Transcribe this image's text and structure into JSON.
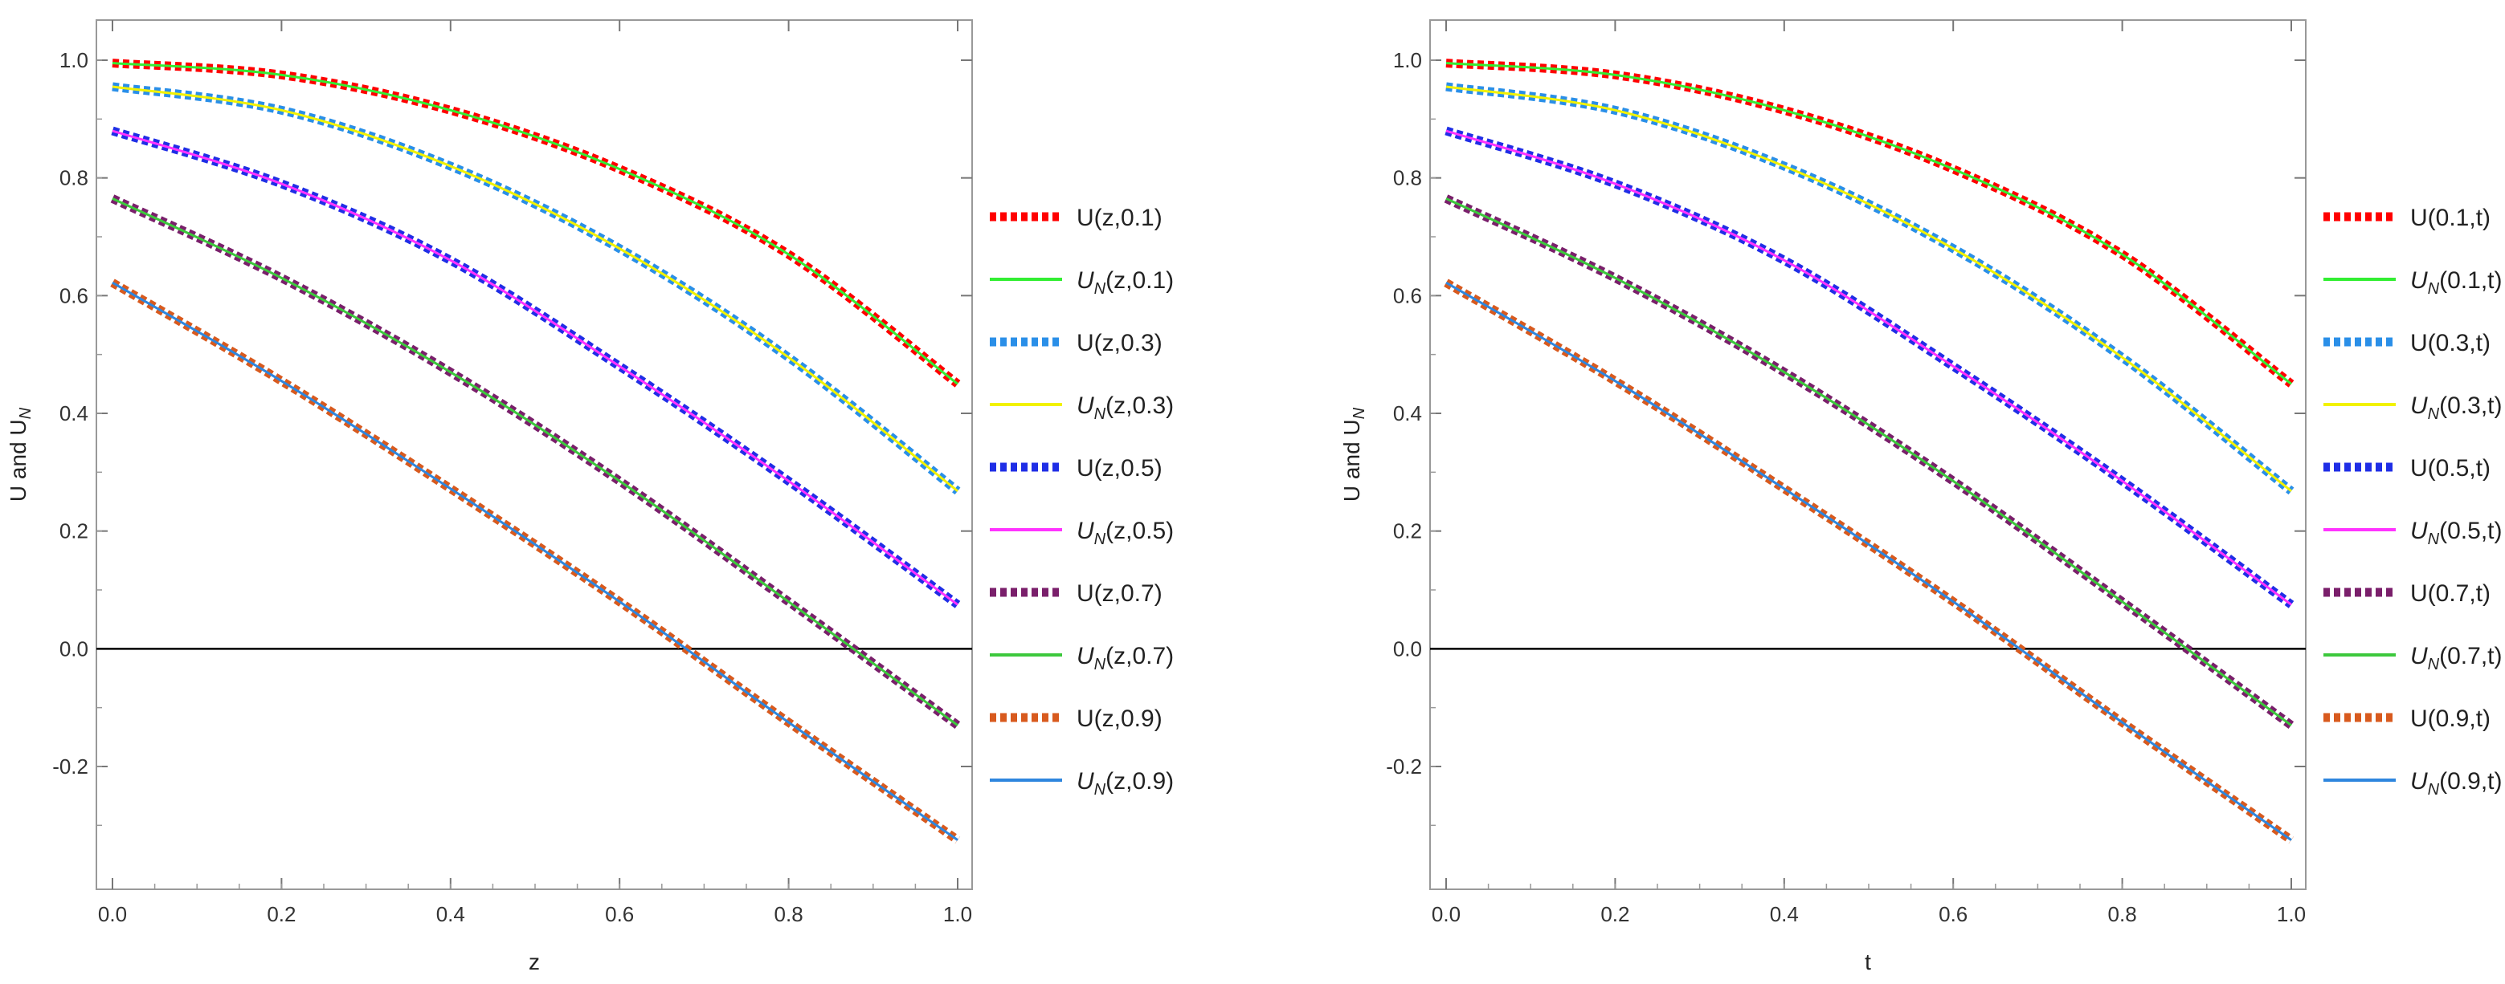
{
  "chart_data": [
    {
      "type": "line",
      "xlabel": "z",
      "ylabel": "U and U_N",
      "xlim": [
        0.0,
        1.0
      ],
      "ylim": [
        -0.4,
        1.05
      ],
      "xticks": [
        "0.0",
        "0.2",
        "0.4",
        "0.6",
        "0.8",
        "1.0"
      ],
      "yticks": [
        "-0.2",
        "0.0",
        "0.2",
        "0.4",
        "0.6",
        "0.8",
        "1.0"
      ],
      "x": [
        0.0,
        0.2,
        0.4,
        0.6,
        0.8,
        1.0
      ],
      "series": [
        {
          "name": "U(z,0.1)",
          "legend_main": "U",
          "legend_args": "(z,0.1)",
          "legend_sub": "",
          "color": "#ff0000",
          "style": "dashed-thick",
          "values": [
            0.995,
            0.975,
            0.915,
            0.815,
            0.67,
            0.45
          ]
        },
        {
          "name": "U_N(z,0.1)",
          "legend_main": "U",
          "legend_args": "(z,0.1)",
          "legend_sub": "N",
          "color": "#33ee33",
          "style": "solid",
          "values": [
            0.995,
            0.975,
            0.915,
            0.815,
            0.67,
            0.45
          ]
        },
        {
          "name": "U(z,0.3)",
          "legend_main": "U",
          "legend_args": "(z,0.3)",
          "legend_sub": "",
          "color": "#2a8fe8",
          "style": "dashed-thick",
          "values": [
            0.955,
            0.915,
            0.82,
            0.68,
            0.495,
            0.268
          ]
        },
        {
          "name": "U_N(z,0.3)",
          "legend_main": "U",
          "legend_args": "(z,0.3)",
          "legend_sub": "N",
          "color": "#f2f200",
          "style": "solid",
          "values": [
            0.955,
            0.915,
            0.82,
            0.68,
            0.495,
            0.268
          ]
        },
        {
          "name": "U(z,0.5)",
          "legend_main": "U",
          "legend_args": "(z,0.5)",
          "legend_sub": "",
          "color": "#1f2ee6",
          "style": "dashed-thick",
          "values": [
            0.88,
            0.79,
            0.66,
            0.48,
            0.285,
            0.075
          ]
        },
        {
          "name": "U_N(z,0.5)",
          "legend_main": "U",
          "legend_args": "(z,0.5)",
          "legend_sub": "N",
          "color": "#ff33ff",
          "style": "solid",
          "values": [
            0.88,
            0.79,
            0.66,
            0.48,
            0.285,
            0.075
          ]
        },
        {
          "name": "U(z,0.7)",
          "legend_main": "U",
          "legend_args": "(z,0.7)",
          "legend_sub": "",
          "color": "#7a1f6b",
          "style": "dashed-thick",
          "values": [
            0.765,
            0.63,
            0.47,
            0.285,
            0.08,
            -0.13
          ]
        },
        {
          "name": "U_N(z,0.7)",
          "legend_main": "U",
          "legend_args": "(z,0.7)",
          "legend_sub": "N",
          "color": "#3cc83c",
          "style": "solid",
          "values": [
            0.765,
            0.63,
            0.47,
            0.285,
            0.08,
            -0.13
          ]
        },
        {
          "name": "U(z,0.9)",
          "legend_main": "U",
          "legend_args": "(z,0.9)",
          "legend_sub": "",
          "color": "#d85a1e",
          "style": "dashed-thick",
          "values": [
            0.622,
            0.455,
            0.272,
            0.08,
            -0.125,
            -0.325
          ]
        },
        {
          "name": "U_N(z,0.9)",
          "legend_main": "U",
          "legend_args": "(z,0.9)",
          "legend_sub": "N",
          "color": "#2e86de",
          "style": "solid",
          "values": [
            0.622,
            0.455,
            0.272,
            0.08,
            -0.125,
            -0.325
          ]
        }
      ]
    },
    {
      "type": "line",
      "xlabel": "t",
      "ylabel": "U and U_N",
      "xlim": [
        0.0,
        1.0
      ],
      "ylim": [
        -0.4,
        1.05
      ],
      "xticks": [
        "0.0",
        "0.2",
        "0.4",
        "0.6",
        "0.8",
        "1.0"
      ],
      "yticks": [
        "-0.2",
        "0.0",
        "0.2",
        "0.4",
        "0.6",
        "0.8",
        "1.0"
      ],
      "x": [
        0.0,
        0.2,
        0.4,
        0.6,
        0.8,
        1.0
      ],
      "series": [
        {
          "name": "U(0.1,t)",
          "legend_main": "U",
          "legend_args": "(0.1,t)",
          "legend_sub": "",
          "color": "#ff0000",
          "style": "dashed-thick",
          "values": [
            0.995,
            0.975,
            0.915,
            0.815,
            0.67,
            0.45
          ]
        },
        {
          "name": "U_N(0.1,t)",
          "legend_main": "U",
          "legend_args": "(0.1,t)",
          "legend_sub": "N",
          "color": "#33ee33",
          "style": "solid",
          "values": [
            0.995,
            0.975,
            0.915,
            0.815,
            0.67,
            0.45
          ]
        },
        {
          "name": "U(0.3,t)",
          "legend_main": "U",
          "legend_args": "(0.3,t)",
          "legend_sub": "",
          "color": "#2a8fe8",
          "style": "dashed-thick",
          "values": [
            0.955,
            0.915,
            0.82,
            0.68,
            0.495,
            0.268
          ]
        },
        {
          "name": "U_N(0.3,t)",
          "legend_main": "U",
          "legend_args": "(0.3,t)",
          "legend_sub": "N",
          "color": "#f2f200",
          "style": "solid",
          "values": [
            0.955,
            0.915,
            0.82,
            0.68,
            0.495,
            0.268
          ]
        },
        {
          "name": "U(0.5,t)",
          "legend_main": "U",
          "legend_args": "(0.5,t)",
          "legend_sub": "",
          "color": "#1f2ee6",
          "style": "dashed-thick",
          "values": [
            0.88,
            0.79,
            0.66,
            0.48,
            0.285,
            0.075
          ]
        },
        {
          "name": "U_N(0.5,t)",
          "legend_main": "U",
          "legend_args": "(0.5,t)",
          "legend_sub": "N",
          "color": "#ff33ff",
          "style": "solid",
          "values": [
            0.88,
            0.79,
            0.66,
            0.48,
            0.285,
            0.075
          ]
        },
        {
          "name": "U(0.7,t)",
          "legend_main": "U",
          "legend_args": "(0.7,t)",
          "legend_sub": "",
          "color": "#7a1f6b",
          "style": "dashed-thick",
          "values": [
            0.765,
            0.63,
            0.47,
            0.285,
            0.08,
            -0.13
          ]
        },
        {
          "name": "U_N(0.7,t)",
          "legend_main": "U",
          "legend_args": "(0.7,t)",
          "legend_sub": "N",
          "color": "#3cc83c",
          "style": "solid",
          "values": [
            0.765,
            0.63,
            0.47,
            0.285,
            0.08,
            -0.13
          ]
        },
        {
          "name": "U(0.9,t)",
          "legend_main": "U",
          "legend_args": "(0.9,t)",
          "legend_sub": "",
          "color": "#d85a1e",
          "style": "dashed-thick",
          "values": [
            0.622,
            0.455,
            0.272,
            0.08,
            -0.125,
            -0.325
          ]
        },
        {
          "name": "U_N(0.9,t)",
          "legend_main": "U",
          "legend_args": "(0.9,t)",
          "legend_sub": "N",
          "color": "#2e86de",
          "style": "solid",
          "values": [
            0.622,
            0.455,
            0.272,
            0.08,
            -0.125,
            -0.325
          ]
        }
      ]
    }
  ]
}
